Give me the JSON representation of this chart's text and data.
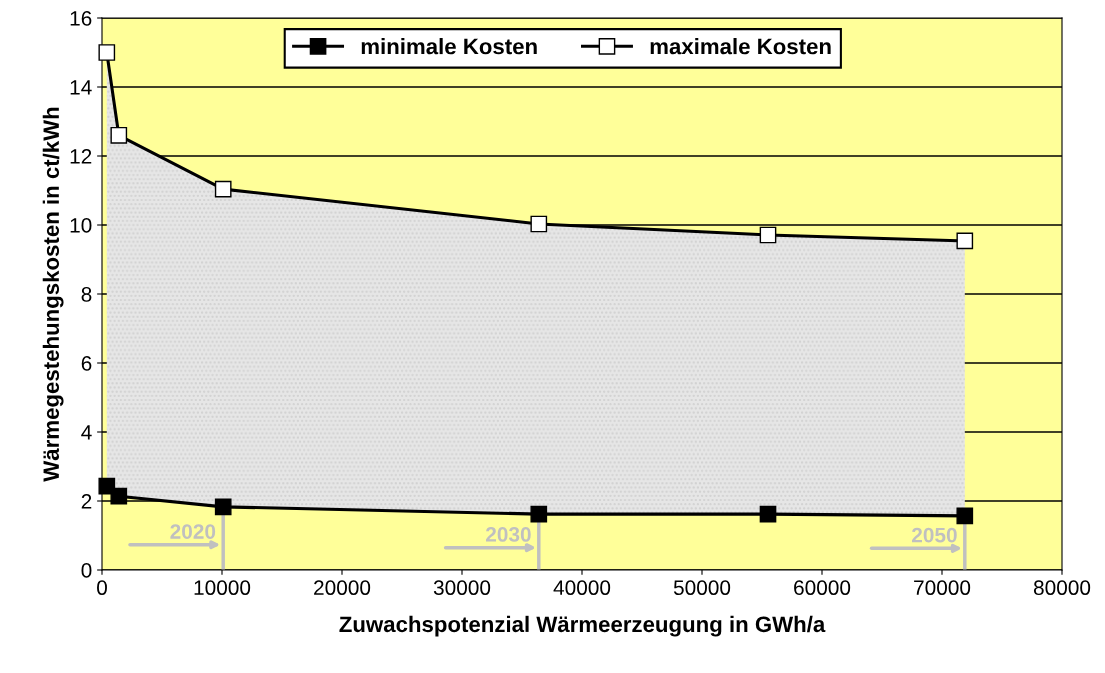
{
  "chart_data": {
    "type": "line",
    "xlabel": "Zuwachspotenzial Wärmeerzeugung in GWh/a",
    "ylabel": "Wärmegestehungskosten in ct/kWh",
    "series": [
      {
        "name": "minimale Kosten",
        "color": "#000000",
        "x": [
          400,
          1400,
          10100,
          36400,
          55500,
          71900
        ],
        "values": [
          2.43,
          2.14,
          1.83,
          1.62,
          1.62,
          1.57
        ]
      },
      {
        "name": "maximale Kosten",
        "color": "#ffffff",
        "x": [
          400,
          1400,
          10100,
          36400,
          55500,
          71900
        ],
        "values": [
          15.0,
          12.6,
          11.04,
          10.03,
          9.71,
          9.54
        ],
        "lower": [
          2.43,
          2.14,
          1.83,
          1.62,
          1.62,
          1.57
        ],
        "upper": [
          15.0,
          12.6,
          11.04,
          10.03,
          9.71,
          9.54
        ]
      }
    ],
    "xlim": [
      0,
      80000
    ],
    "xticks": [
      0,
      10000,
      20000,
      30000,
      40000,
      50000,
      60000,
      70000,
      80000
    ],
    "ylim": [
      0,
      16
    ],
    "yticks": [
      0,
      2,
      4,
      6,
      8,
      10,
      12,
      14,
      16
    ],
    "annotations": [
      {
        "text": "2020",
        "x": 10100,
        "y": 1.83
      },
      {
        "text": "2030",
        "x": 36400,
        "y": 1.62
      },
      {
        "text": "2050",
        "x": 71900,
        "y": 1.57
      }
    ],
    "grid": "y",
    "legend": "top",
    "marker": "square",
    "line_style": "solid"
  }
}
